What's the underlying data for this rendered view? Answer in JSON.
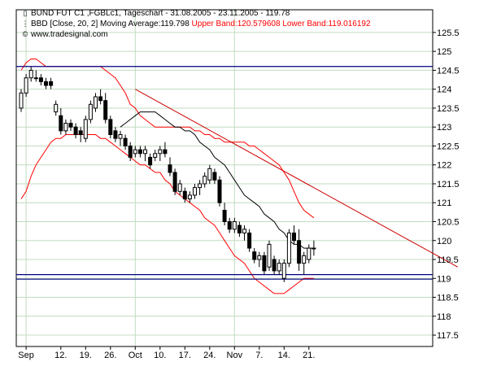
{
  "header": {
    "line1": "BUND FUT C1 ,FGBLc1, Tageschart - 31.08.2005 - 23.11.2005 - 119.78",
    "line2_main": "BBD [Close, 20, 2] Moving Average:119.798",
    "line2_upper": "Upper Band:120.579608",
    "line2_lower": "Lower Band:119.016192",
    "line3": "www.tradesignal.com",
    "icons": [
      "candlestick-icon",
      "bollinger-icon",
      "copyright-icon"
    ]
  },
  "colors": {
    "candle_outline": "#000000",
    "bollinger_bands": "#ff0000",
    "moving_average": "#000000",
    "trendline": "#cc0000",
    "horizontal_lines": "#000080",
    "grid": "#c0dcc0"
  },
  "chart_data": {
    "type": "candlestick",
    "title": "BUND FUT C1 ,FGBLc1, Tageschart - 31.08.2005 - 23.11.2005 - 119.78",
    "ylim": [
      117.2,
      126.1
    ],
    "y_ticks": [
      "117.5",
      "118",
      "118.5",
      "119",
      "119.5",
      "120",
      "120.5",
      "121",
      "121.5",
      "122",
      "122.5",
      "123",
      "123.5",
      "124",
      "124.5",
      "125",
      "125.5"
    ],
    "x_labels": [
      "Sep",
      "12.",
      "19.",
      "26.",
      "Oct",
      "10.",
      "17.",
      "24.",
      "Nov",
      "7.",
      "14.",
      "21."
    ],
    "x_label_index": [
      1,
      8,
      13,
      18,
      23,
      28,
      33,
      38,
      43,
      48,
      53,
      58
    ],
    "grid": true,
    "candles": [
      {
        "o": 123.5,
        "h": 124.0,
        "l": 123.4,
        "c": 123.9
      },
      {
        "o": 123.9,
        "h": 124.4,
        "l": 123.8,
        "c": 124.3
      },
      {
        "o": 124.3,
        "h": 124.6,
        "l": 124.2,
        "c": 124.5
      },
      {
        "o": 124.3,
        "h": 124.5,
        "l": 124.2,
        "c": 124.3
      },
      {
        "o": 124.3,
        "h": 124.4,
        "l": 124.1,
        "c": 124.2
      },
      {
        "o": 124.2,
        "h": 124.3,
        "l": 124.0,
        "c": 124.1
      },
      {
        "o": 124.2,
        "h": 124.3,
        "l": 124.0,
        "c": 124.1
      },
      {
        "o": 123.4,
        "h": 123.7,
        "l": 123.3,
        "c": 123.6
      },
      {
        "o": 123.3,
        "h": 123.5,
        "l": 122.8,
        "c": 122.9
      },
      {
        "o": 122.9,
        "h": 123.2,
        "l": 122.8,
        "c": 123.1
      },
      {
        "o": 123.1,
        "h": 123.2,
        "l": 122.9,
        "c": 123.0
      },
      {
        "o": 123.0,
        "h": 123.1,
        "l": 122.7,
        "c": 122.8
      },
      {
        "o": 122.9,
        "h": 123.0,
        "l": 122.6,
        "c": 122.8
      },
      {
        "o": 122.7,
        "h": 123.3,
        "l": 122.6,
        "c": 123.2
      },
      {
        "o": 123.2,
        "h": 123.7,
        "l": 123.1,
        "c": 123.6
      },
      {
        "o": 123.5,
        "h": 123.9,
        "l": 123.4,
        "c": 123.8
      },
      {
        "o": 123.8,
        "h": 124.0,
        "l": 123.6,
        "c": 123.7
      },
      {
        "o": 123.7,
        "h": 123.9,
        "l": 123.1,
        "c": 123.2
      },
      {
        "o": 123.2,
        "h": 123.3,
        "l": 122.7,
        "c": 122.8
      },
      {
        "o": 122.9,
        "h": 123.0,
        "l": 122.6,
        "c": 122.7
      },
      {
        "o": 122.7,
        "h": 122.9,
        "l": 122.5,
        "c": 122.8
      },
      {
        "o": 122.7,
        "h": 122.8,
        "l": 122.4,
        "c": 122.5
      },
      {
        "o": 122.5,
        "h": 122.6,
        "l": 122.1,
        "c": 122.2
      },
      {
        "o": 122.3,
        "h": 122.5,
        "l": 122.2,
        "c": 122.4
      },
      {
        "o": 122.4,
        "h": 122.5,
        "l": 122.2,
        "c": 122.3
      },
      {
        "o": 122.3,
        "h": 122.5,
        "l": 122.1,
        "c": 122.4
      },
      {
        "o": 122.2,
        "h": 122.3,
        "l": 121.9,
        "c": 122.0
      },
      {
        "o": 122.2,
        "h": 122.4,
        "l": 122.1,
        "c": 122.3
      },
      {
        "o": 122.3,
        "h": 122.5,
        "l": 122.1,
        "c": 122.4
      },
      {
        "o": 122.4,
        "h": 122.6,
        "l": 122.2,
        "c": 122.3
      },
      {
        "o": 122.0,
        "h": 122.2,
        "l": 121.7,
        "c": 121.8
      },
      {
        "o": 121.8,
        "h": 121.9,
        "l": 121.2,
        "c": 121.3
      },
      {
        "o": 121.3,
        "h": 121.6,
        "l": 121.2,
        "c": 121.5
      },
      {
        "o": 121.3,
        "h": 121.4,
        "l": 121.0,
        "c": 121.1
      },
      {
        "o": 121.1,
        "h": 121.3,
        "l": 121.0,
        "c": 121.2
      },
      {
        "o": 121.2,
        "h": 121.5,
        "l": 121.1,
        "c": 121.4
      },
      {
        "o": 121.4,
        "h": 121.6,
        "l": 121.2,
        "c": 121.5
      },
      {
        "o": 121.5,
        "h": 121.8,
        "l": 121.4,
        "c": 121.7
      },
      {
        "o": 121.6,
        "h": 122.0,
        "l": 121.5,
        "c": 121.9
      },
      {
        "o": 121.8,
        "h": 121.9,
        "l": 121.5,
        "c": 121.6
      },
      {
        "o": 121.6,
        "h": 121.7,
        "l": 120.9,
        "c": 121.0
      },
      {
        "o": 120.8,
        "h": 121.0,
        "l": 120.4,
        "c": 120.5
      },
      {
        "o": 120.5,
        "h": 120.6,
        "l": 120.2,
        "c": 120.3
      },
      {
        "o": 120.3,
        "h": 120.6,
        "l": 120.2,
        "c": 120.5
      },
      {
        "o": 120.4,
        "h": 120.5,
        "l": 120.1,
        "c": 120.2
      },
      {
        "o": 120.2,
        "h": 120.4,
        "l": 120.0,
        "c": 120.3
      },
      {
        "o": 120.2,
        "h": 120.3,
        "l": 119.7,
        "c": 119.8
      },
      {
        "o": 119.7,
        "h": 119.8,
        "l": 119.4,
        "c": 119.5
      },
      {
        "o": 119.5,
        "h": 119.7,
        "l": 119.3,
        "c": 119.6
      },
      {
        "o": 119.6,
        "h": 119.7,
        "l": 119.1,
        "c": 119.2
      },
      {
        "o": 119.3,
        "h": 120.0,
        "l": 119.2,
        "c": 119.9
      },
      {
        "o": 119.5,
        "h": 119.6,
        "l": 119.1,
        "c": 119.2
      },
      {
        "o": 119.2,
        "h": 119.5,
        "l": 119.1,
        "c": 119.4
      },
      {
        "o": 119.0,
        "h": 119.5,
        "l": 118.9,
        "c": 119.4
      },
      {
        "o": 119.4,
        "h": 120.3,
        "l": 119.3,
        "c": 120.2
      },
      {
        "o": 120.2,
        "h": 120.4,
        "l": 119.9,
        "c": 120.0
      },
      {
        "o": 120.0,
        "h": 120.3,
        "l": 119.2,
        "c": 119.4
      },
      {
        "o": 119.4,
        "h": 119.7,
        "l": 119.1,
        "c": 119.6
      },
      {
        "o": 119.5,
        "h": 119.9,
        "l": 119.4,
        "c": 119.8
      },
      {
        "o": 119.8,
        "h": 120.0,
        "l": 119.6,
        "c": 119.8
      }
    ],
    "upper_band": [
      124.5,
      124.7,
      124.8,
      124.8,
      124.7,
      124.6,
      124.6,
      124.6,
      124.6,
      124.6,
      124.6,
      124.6,
      124.6,
      124.6,
      124.6,
      124.6,
      124.6,
      124.5,
      124.4,
      124.3,
      124.1,
      123.9,
      123.6,
      123.5,
      123.3,
      123.2,
      123.1,
      123.0,
      123.0,
      123.0,
      123.0,
      123.0,
      123.0,
      123.0,
      123.0,
      122.9,
      122.9,
      122.8,
      122.8,
      122.7,
      122.7,
      122.6,
      122.6,
      122.6,
      122.6,
      122.6,
      122.5,
      122.5,
      122.4,
      122.3,
      122.2,
      122.1,
      122.0,
      121.8,
      121.6,
      121.3,
      121.0,
      120.8,
      120.7,
      120.6
    ],
    "moving_average": [
      null,
      null,
      null,
      null,
      null,
      null,
      null,
      null,
      null,
      null,
      null,
      null,
      null,
      null,
      null,
      null,
      null,
      null,
      null,
      null,
      123.0,
      123.1,
      123.2,
      123.3,
      123.4,
      123.4,
      123.4,
      123.4,
      123.3,
      123.2,
      123.1,
      123.0,
      123.0,
      122.9,
      122.9,
      122.8,
      122.6,
      122.5,
      122.4,
      122.2,
      122.1,
      122.0,
      121.8,
      121.6,
      121.4,
      121.2,
      121.1,
      121.0,
      120.9,
      120.7,
      120.6,
      120.5,
      120.3,
      120.2,
      120.0,
      119.9,
      119.9,
      119.8,
      119.8,
      119.8
    ],
    "lower_band": [
      121.1,
      121.3,
      121.7,
      122.0,
      122.2,
      122.4,
      122.6,
      122.7,
      122.7,
      122.8,
      122.8,
      122.8,
      122.8,
      122.8,
      122.8,
      122.8,
      122.7,
      122.7,
      122.6,
      122.5,
      122.4,
      122.3,
      122.2,
      122.1,
      122.0,
      122.0,
      121.9,
      121.8,
      121.8,
      121.6,
      121.5,
      121.3,
      121.2,
      121.1,
      121.0,
      120.9,
      120.8,
      120.6,
      120.5,
      120.4,
      120.2,
      120.0,
      119.8,
      119.6,
      119.5,
      119.4,
      119.2,
      119.0,
      118.9,
      118.8,
      118.7,
      118.6,
      118.6,
      118.6,
      118.7,
      118.8,
      118.9,
      119.0,
      119.0,
      119.0
    ],
    "trendline": {
      "x1": 23,
      "y1": 124.0,
      "x2": 88,
      "y2": 119.3
    },
    "horizontal_lines": [
      124.6,
      119.1,
      118.98
    ]
  }
}
